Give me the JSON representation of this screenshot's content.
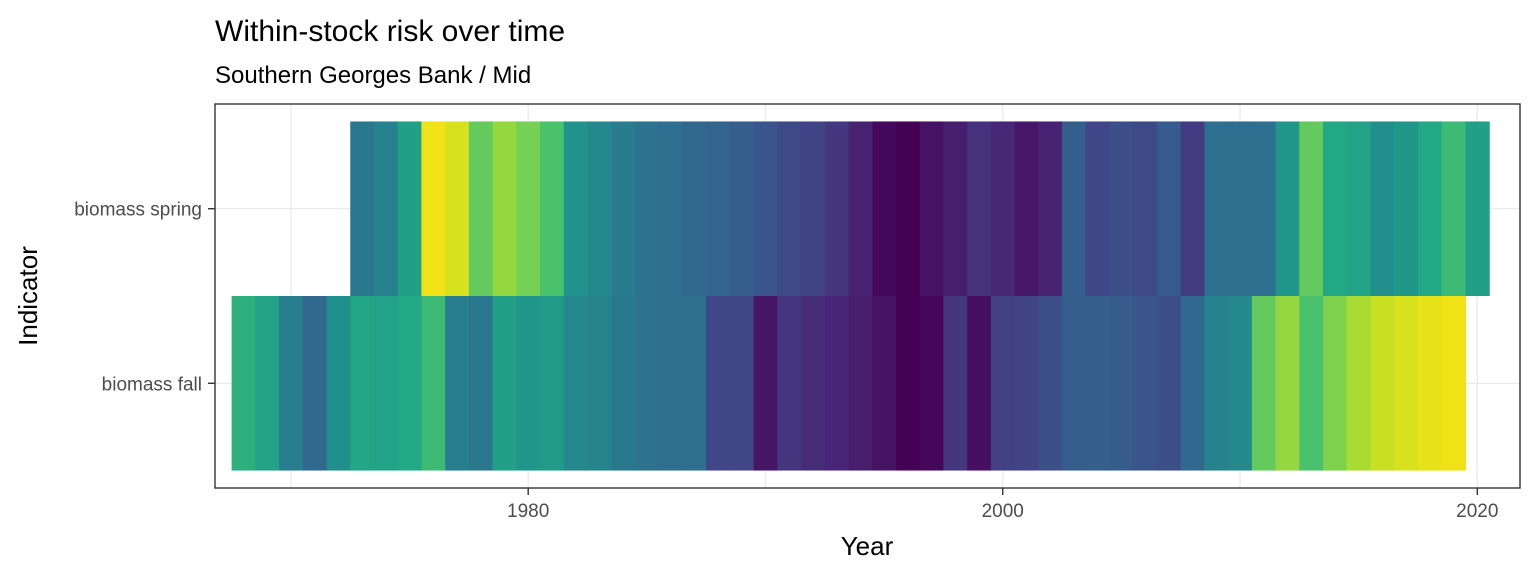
{
  "chart_data": {
    "type": "heatmap",
    "title": "Within-stock risk over time",
    "subtitle": "Southern Georges Bank / Mid",
    "xlabel": "Year",
    "ylabel": "Indicator",
    "xlim": [
      1966.8,
      2021.8
    ],
    "x_ticks": [
      1980,
      2000,
      2020
    ],
    "grid": true,
    "colormap": "viridis",
    "value_range": [
      0,
      1
    ],
    "rows": [
      {
        "label": "biomass spring",
        "start_year": 1973,
        "values": [
          0.5,
          0.55,
          0.7,
          1.0,
          0.97,
          0.85,
          0.9,
          0.87,
          0.82,
          0.63,
          0.58,
          0.52,
          0.47,
          0.45,
          0.42,
          0.4,
          0.37,
          0.33,
          0.28,
          0.25,
          0.2,
          0.12,
          0.03,
          0.0,
          0.06,
          0.1,
          0.18,
          0.14,
          0.08,
          0.12,
          0.37,
          0.26,
          0.3,
          0.28,
          0.35,
          0.22,
          0.45,
          0.45,
          0.45,
          0.65,
          0.85,
          0.75,
          0.72,
          0.62,
          0.66,
          0.75,
          0.8,
          0.7
        ]
      },
      {
        "label": "biomass fall",
        "start_year": 1968,
        "values": [
          0.77,
          0.72,
          0.53,
          0.42,
          0.62,
          0.74,
          0.72,
          0.75,
          0.8,
          0.53,
          0.5,
          0.7,
          0.65,
          0.68,
          0.58,
          0.56,
          0.5,
          0.47,
          0.45,
          0.45,
          0.26,
          0.26,
          0.07,
          0.2,
          0.16,
          0.13,
          0.1,
          0.06,
          0.0,
          0.02,
          0.2,
          0.05,
          0.24,
          0.25,
          0.3,
          0.37,
          0.38,
          0.36,
          0.33,
          0.3,
          0.42,
          0.55,
          0.58,
          0.85,
          0.9,
          0.82,
          0.88,
          0.92,
          0.95,
          0.97,
          0.99,
          1.0
        ]
      }
    ]
  }
}
